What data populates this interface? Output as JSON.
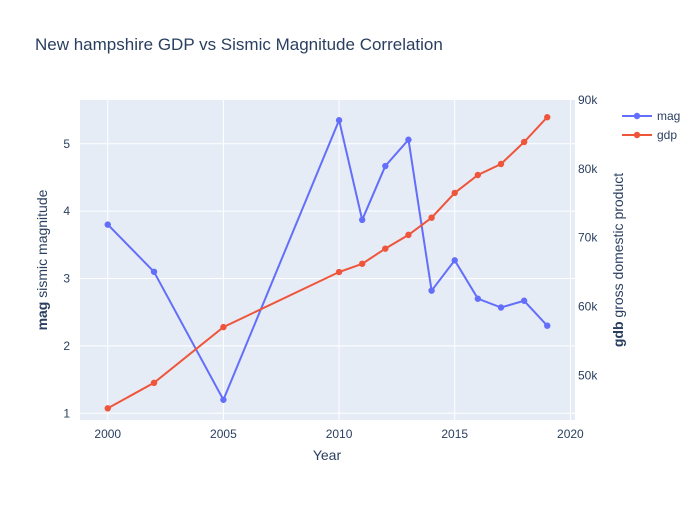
{
  "chart_data": {
    "type": "line",
    "title": "New hampshire GDP vs Sismic Magnitude Correlation",
    "xlabel": "Year",
    "ylabel_bold": "mag",
    "ylabel_rest": " sismic magnitude",
    "y2label_bold": "gdb",
    "y2label_rest": " gross domestic product",
    "xlim": [
      1998.8,
      2020.2
    ],
    "ylim": [
      0.9,
      5.65
    ],
    "y2lim": [
      43500,
      90000
    ],
    "x_ticks": [
      2000,
      2005,
      2010,
      2015,
      2020
    ],
    "x_tick_labels": [
      "2000",
      "2005",
      "2010",
      "2015",
      "2020"
    ],
    "y_ticks": [
      1,
      2,
      3,
      4,
      5
    ],
    "y_tick_labels": [
      "1",
      "2",
      "3",
      "4",
      "5"
    ],
    "y2_ticks": [
      50000,
      60000,
      70000,
      80000,
      90000
    ],
    "y2_tick_labels": [
      "50k",
      "60k",
      "70k",
      "80k",
      "90k"
    ],
    "grid": true,
    "legend_position": "top-right",
    "series": [
      {
        "name": "mag",
        "axis": "y",
        "color": "#636efa",
        "x": [
          2000,
          2002,
          2005,
          2010,
          2011,
          2012,
          2013,
          2014,
          2015,
          2016,
          2017,
          2018,
          2019
        ],
        "values": [
          3.8,
          3.1,
          1.2,
          5.35,
          3.87,
          4.67,
          5.06,
          2.82,
          3.27,
          2.7,
          2.57,
          2.67,
          2.3
        ]
      },
      {
        "name": "gdp",
        "axis": "y2",
        "color": "#ef553b",
        "x": [
          2000,
          2002,
          2005,
          2010,
          2011,
          2012,
          2013,
          2014,
          2015,
          2016,
          2017,
          2018,
          2019
        ],
        "values": [
          45200,
          48900,
          57000,
          65000,
          66200,
          68400,
          70400,
          72900,
          76500,
          79100,
          80700,
          83900,
          87500
        ]
      }
    ]
  }
}
